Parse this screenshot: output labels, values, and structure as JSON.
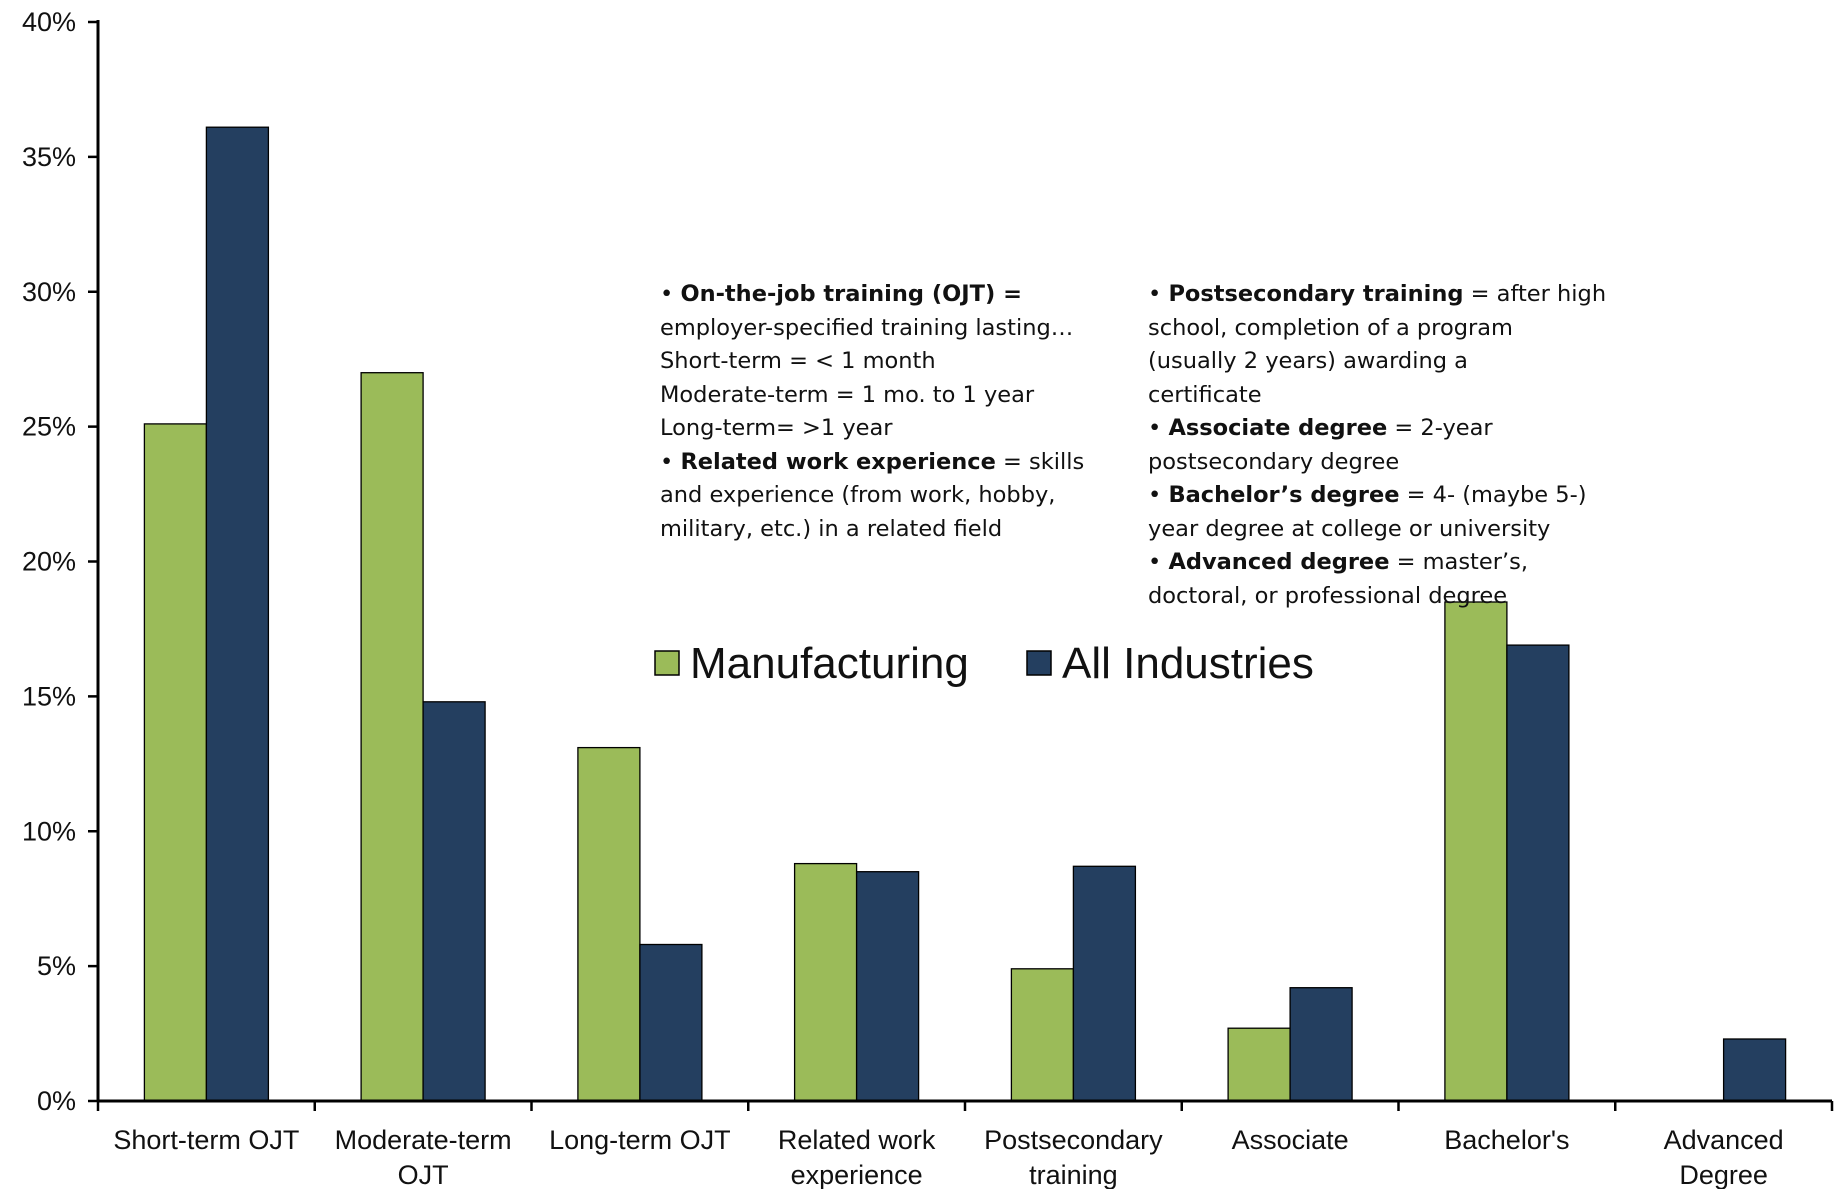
{
  "chart_data": {
    "type": "bar",
    "categories": [
      [
        "Short-term OJT"
      ],
      [
        "Moderate-term",
        "OJT"
      ],
      [
        "Long-term OJT"
      ],
      [
        "Related work",
        "experience"
      ],
      [
        "Postsecondary",
        "training"
      ],
      [
        "Associate"
      ],
      [
        "Bachelor's"
      ],
      [
        "Advanced",
        "Degree"
      ]
    ],
    "series": [
      {
        "name": "Manufacturing",
        "color": "#9bbb59",
        "values": [
          25.1,
          27.0,
          13.1,
          8.8,
          4.9,
          2.7,
          18.5,
          0
        ]
      },
      {
        "name": "All Industries",
        "color": "#243f60",
        "values": [
          36.1,
          14.8,
          5.8,
          8.5,
          8.7,
          4.2,
          16.9,
          2.3
        ]
      }
    ],
    "ylim": [
      0,
      40
    ],
    "ytick_step": 5,
    "ytick_labels": [
      "0%",
      "5%",
      "10%",
      "15%",
      "20%",
      "25%",
      "30%",
      "35%",
      "40%"
    ],
    "legend_position": "center",
    "grid": false
  },
  "notes": {
    "left": {
      "ojt_term": "On-the-job training (OJT) =",
      "ojt_desc": "employer-specified training lasting…",
      "short_term": "Short-term = < 1 month",
      "moderate_term": "Moderate-term = 1 mo. to 1 year",
      "long_term": "Long-term= >1 year",
      "rwe_term": "Related work experience",
      "rwe_desc_1": "= skills",
      "rwe_desc_2": "and experience (from work, hobby,",
      "rwe_desc_3": "military, etc.) in a related field"
    },
    "right": {
      "post_term": "Postsecondary training",
      "post_desc_1": "= after high",
      "post_desc_2": "school, completion of a program",
      "post_desc_3": "(usually 2 years) awarding a",
      "post_desc_4": "certificate",
      "assoc_term": "Associate degree",
      "assoc_desc_1": "= 2-year",
      "assoc_desc_2": "postsecondary degree",
      "bach_term": "Bachelor’s degree",
      "bach_desc_1": "= 4- (maybe 5-)",
      "bach_desc_2": "year degree at college or university",
      "adv_term": "Advanced degree",
      "adv_desc_1": "= master’s,",
      "adv_desc_2": "doctoral, or professional degree"
    }
  }
}
